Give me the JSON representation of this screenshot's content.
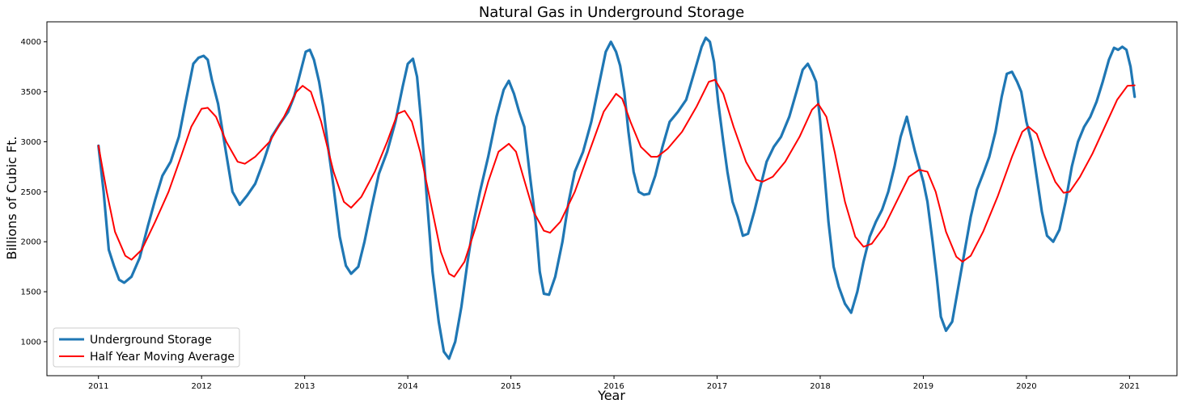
{
  "chart_data": {
    "type": "line",
    "title": "Natural Gas in Underground Storage",
    "xlabel": "Year",
    "ylabel": "Billions of Cubic Ft.",
    "xlim": [
      2010.5,
      2021.46
    ],
    "ylim": [
      660,
      4200
    ],
    "x_ticks": [
      2011,
      2012,
      2013,
      2014,
      2015,
      2016,
      2017,
      2018,
      2019,
      2020,
      2021
    ],
    "x_tick_labels": [
      "2011",
      "2012",
      "2013",
      "2014",
      "2015",
      "2016",
      "2017",
      "2018",
      "2019",
      "2020",
      "2021"
    ],
    "y_ticks": [
      1000,
      1500,
      2000,
      2500,
      3000,
      3500,
      4000
    ],
    "y_tick_labels": [
      "1000",
      "1500",
      "2000",
      "2500",
      "3000",
      "3500",
      "4000"
    ],
    "grid": false,
    "legend_position": "lower-left",
    "series": [
      {
        "name": "Underground Storage",
        "color": "#1f77b4",
        "points": [
          [
            2011.0,
            2960
          ],
          [
            2011.05,
            2500
          ],
          [
            2011.1,
            1920
          ],
          [
            2011.15,
            1760
          ],
          [
            2011.2,
            1620
          ],
          [
            2011.25,
            1590
          ],
          [
            2011.32,
            1650
          ],
          [
            2011.4,
            1840
          ],
          [
            2011.48,
            2160
          ],
          [
            2011.55,
            2420
          ],
          [
            2011.62,
            2660
          ],
          [
            2011.7,
            2800
          ],
          [
            2011.78,
            3050
          ],
          [
            2011.85,
            3420
          ],
          [
            2011.92,
            3780
          ],
          [
            2011.97,
            3840
          ],
          [
            2012.02,
            3860
          ],
          [
            2012.06,
            3820
          ],
          [
            2012.1,
            3620
          ],
          [
            2012.16,
            3380
          ],
          [
            2012.22,
            3000
          ],
          [
            2012.3,
            2500
          ],
          [
            2012.37,
            2370
          ],
          [
            2012.44,
            2460
          ],
          [
            2012.52,
            2580
          ],
          [
            2012.6,
            2800
          ],
          [
            2012.68,
            3050
          ],
          [
            2012.76,
            3180
          ],
          [
            2012.84,
            3300
          ],
          [
            2012.9,
            3460
          ],
          [
            2012.96,
            3700
          ],
          [
            2013.01,
            3900
          ],
          [
            2013.05,
            3920
          ],
          [
            2013.09,
            3820
          ],
          [
            2013.14,
            3600
          ],
          [
            2013.18,
            3350
          ],
          [
            2013.22,
            3000
          ],
          [
            2013.28,
            2550
          ],
          [
            2013.34,
            2050
          ],
          [
            2013.4,
            1760
          ],
          [
            2013.45,
            1680
          ],
          [
            2013.52,
            1750
          ],
          [
            2013.58,
            2000
          ],
          [
            2013.65,
            2350
          ],
          [
            2013.72,
            2680
          ],
          [
            2013.8,
            2900
          ],
          [
            2013.88,
            3200
          ],
          [
            2013.95,
            3550
          ],
          [
            2014.0,
            3780
          ],
          [
            2014.05,
            3830
          ],
          [
            2014.09,
            3650
          ],
          [
            2014.13,
            3200
          ],
          [
            2014.18,
            2500
          ],
          [
            2014.24,
            1700
          ],
          [
            2014.3,
            1200
          ],
          [
            2014.35,
            900
          ],
          [
            2014.4,
            830
          ],
          [
            2014.46,
            1000
          ],
          [
            2014.52,
            1350
          ],
          [
            2014.58,
            1800
          ],
          [
            2014.64,
            2200
          ],
          [
            2014.7,
            2500
          ],
          [
            2014.78,
            2850
          ],
          [
            2014.86,
            3250
          ],
          [
            2014.93,
            3520
          ],
          [
            2014.98,
            3610
          ],
          [
            2015.03,
            3480
          ],
          [
            2015.08,
            3300
          ],
          [
            2015.13,
            3150
          ],
          [
            2015.18,
            2700
          ],
          [
            2015.24,
            2200
          ],
          [
            2015.28,
            1700
          ],
          [
            2015.32,
            1480
          ],
          [
            2015.37,
            1470
          ],
          [
            2015.43,
            1650
          ],
          [
            2015.5,
            2000
          ],
          [
            2015.56,
            2400
          ],
          [
            2015.62,
            2700
          ],
          [
            2015.7,
            2900
          ],
          [
            2015.78,
            3200
          ],
          [
            2015.86,
            3600
          ],
          [
            2015.92,
            3900
          ],
          [
            2015.97,
            4000
          ],
          [
            2016.02,
            3900
          ],
          [
            2016.06,
            3760
          ],
          [
            2016.1,
            3500
          ],
          [
            2016.14,
            3100
          ],
          [
            2016.19,
            2700
          ],
          [
            2016.24,
            2500
          ],
          [
            2016.29,
            2470
          ],
          [
            2016.34,
            2480
          ],
          [
            2016.4,
            2660
          ],
          [
            2016.47,
            2950
          ],
          [
            2016.54,
            3200
          ],
          [
            2016.62,
            3300
          ],
          [
            2016.7,
            3420
          ],
          [
            2016.78,
            3700
          ],
          [
            2016.85,
            3950
          ],
          [
            2016.89,
            4040
          ],
          [
            2016.93,
            4000
          ],
          [
            2016.97,
            3800
          ],
          [
            2017.01,
            3400
          ],
          [
            2017.06,
            3000
          ],
          [
            2017.1,
            2700
          ],
          [
            2017.15,
            2400
          ],
          [
            2017.2,
            2250
          ],
          [
            2017.25,
            2060
          ],
          [
            2017.3,
            2080
          ],
          [
            2017.36,
            2300
          ],
          [
            2017.42,
            2550
          ],
          [
            2017.48,
            2800
          ],
          [
            2017.55,
            2950
          ],
          [
            2017.62,
            3050
          ],
          [
            2017.7,
            3250
          ],
          [
            2017.77,
            3500
          ],
          [
            2017.83,
            3720
          ],
          [
            2017.88,
            3780
          ],
          [
            2017.92,
            3700
          ],
          [
            2017.96,
            3600
          ],
          [
            2018.0,
            3200
          ],
          [
            2018.04,
            2700
          ],
          [
            2018.08,
            2200
          ],
          [
            2018.13,
            1750
          ],
          [
            2018.18,
            1550
          ],
          [
            2018.24,
            1380
          ],
          [
            2018.3,
            1290
          ],
          [
            2018.36,
            1500
          ],
          [
            2018.42,
            1800
          ],
          [
            2018.48,
            2050
          ],
          [
            2018.54,
            2200
          ],
          [
            2018.6,
            2320
          ],
          [
            2018.66,
            2500
          ],
          [
            2018.72,
            2750
          ],
          [
            2018.78,
            3050
          ],
          [
            2018.84,
            3250
          ],
          [
            2018.88,
            3070
          ],
          [
            2018.92,
            2900
          ],
          [
            2018.96,
            2750
          ],
          [
            2019.0,
            2600
          ],
          [
            2019.04,
            2400
          ],
          [
            2019.09,
            2000
          ],
          [
            2019.13,
            1650
          ],
          [
            2019.17,
            1250
          ],
          [
            2019.22,
            1110
          ],
          [
            2019.28,
            1200
          ],
          [
            2019.34,
            1550
          ],
          [
            2019.4,
            1900
          ],
          [
            2019.46,
            2250
          ],
          [
            2019.52,
            2520
          ],
          [
            2019.58,
            2680
          ],
          [
            2019.64,
            2850
          ],
          [
            2019.7,
            3100
          ],
          [
            2019.76,
            3450
          ],
          [
            2019.81,
            3680
          ],
          [
            2019.86,
            3700
          ],
          [
            2019.91,
            3600
          ],
          [
            2019.95,
            3500
          ],
          [
            2020.0,
            3200
          ],
          [
            2020.05,
            3000
          ],
          [
            2020.1,
            2650
          ],
          [
            2020.15,
            2300
          ],
          [
            2020.2,
            2060
          ],
          [
            2020.26,
            2000
          ],
          [
            2020.32,
            2120
          ],
          [
            2020.38,
            2400
          ],
          [
            2020.44,
            2750
          ],
          [
            2020.5,
            3000
          ],
          [
            2020.56,
            3150
          ],
          [
            2020.62,
            3250
          ],
          [
            2020.68,
            3400
          ],
          [
            2020.74,
            3600
          ],
          [
            2020.8,
            3820
          ],
          [
            2020.85,
            3940
          ],
          [
            2020.89,
            3920
          ],
          [
            2020.93,
            3950
          ],
          [
            2020.97,
            3920
          ],
          [
            2021.01,
            3750
          ],
          [
            2021.05,
            3450
          ]
        ]
      },
      {
        "name": "Half Year Moving Average",
        "color": "#ff0000",
        "points": [
          [
            2011.0,
            2960
          ],
          [
            2011.08,
            2500
          ],
          [
            2011.16,
            2100
          ],
          [
            2011.26,
            1860
          ],
          [
            2011.32,
            1820
          ],
          [
            2011.42,
            1920
          ],
          [
            2011.55,
            2200
          ],
          [
            2011.68,
            2500
          ],
          [
            2011.8,
            2850
          ],
          [
            2011.9,
            3150
          ],
          [
            2012.0,
            3330
          ],
          [
            2012.06,
            3340
          ],
          [
            2012.14,
            3250
          ],
          [
            2012.24,
            3000
          ],
          [
            2012.35,
            2800
          ],
          [
            2012.42,
            2780
          ],
          [
            2012.52,
            2850
          ],
          [
            2012.66,
            3000
          ],
          [
            2012.8,
            3250
          ],
          [
            2012.92,
            3500
          ],
          [
            2012.98,
            3560
          ],
          [
            2013.06,
            3500
          ],
          [
            2013.16,
            3200
          ],
          [
            2013.28,
            2700
          ],
          [
            2013.38,
            2400
          ],
          [
            2013.45,
            2340
          ],
          [
            2013.55,
            2450
          ],
          [
            2013.68,
            2700
          ],
          [
            2013.8,
            3000
          ],
          [
            2013.9,
            3280
          ],
          [
            2013.97,
            3310
          ],
          [
            2014.04,
            3200
          ],
          [
            2014.12,
            2900
          ],
          [
            2014.22,
            2400
          ],
          [
            2014.32,
            1900
          ],
          [
            2014.4,
            1680
          ],
          [
            2014.45,
            1650
          ],
          [
            2014.55,
            1800
          ],
          [
            2014.66,
            2150
          ],
          [
            2014.78,
            2600
          ],
          [
            2014.88,
            2900
          ],
          [
            2014.98,
            2980
          ],
          [
            2015.05,
            2900
          ],
          [
            2015.12,
            2650
          ],
          [
            2015.22,
            2300
          ],
          [
            2015.32,
            2110
          ],
          [
            2015.38,
            2090
          ],
          [
            2015.48,
            2200
          ],
          [
            2015.62,
            2500
          ],
          [
            2015.76,
            2900
          ],
          [
            2015.9,
            3300
          ],
          [
            2016.02,
            3480
          ],
          [
            2016.08,
            3430
          ],
          [
            2016.16,
            3200
          ],
          [
            2016.26,
            2950
          ],
          [
            2016.36,
            2850
          ],
          [
            2016.42,
            2850
          ],
          [
            2016.52,
            2930
          ],
          [
            2016.66,
            3100
          ],
          [
            2016.8,
            3350
          ],
          [
            2016.92,
            3600
          ],
          [
            2016.98,
            3620
          ],
          [
            2017.06,
            3480
          ],
          [
            2017.16,
            3150
          ],
          [
            2017.28,
            2800
          ],
          [
            2017.38,
            2620
          ],
          [
            2017.44,
            2600
          ],
          [
            2017.54,
            2650
          ],
          [
            2017.66,
            2800
          ],
          [
            2017.8,
            3050
          ],
          [
            2017.92,
            3320
          ],
          [
            2017.98,
            3380
          ],
          [
            2018.06,
            3250
          ],
          [
            2018.14,
            2900
          ],
          [
            2018.24,
            2400
          ],
          [
            2018.34,
            2050
          ],
          [
            2018.42,
            1950
          ],
          [
            2018.5,
            1980
          ],
          [
            2018.62,
            2150
          ],
          [
            2018.74,
            2400
          ],
          [
            2018.86,
            2650
          ],
          [
            2018.96,
            2720
          ],
          [
            2019.04,
            2700
          ],
          [
            2019.12,
            2500
          ],
          [
            2019.22,
            2100
          ],
          [
            2019.32,
            1850
          ],
          [
            2019.38,
            1800
          ],
          [
            2019.46,
            1860
          ],
          [
            2019.58,
            2100
          ],
          [
            2019.72,
            2450
          ],
          [
            2019.86,
            2850
          ],
          [
            2019.96,
            3100
          ],
          [
            2020.02,
            3150
          ],
          [
            2020.1,
            3080
          ],
          [
            2020.18,
            2850
          ],
          [
            2020.28,
            2600
          ],
          [
            2020.36,
            2490
          ],
          [
            2020.42,
            2500
          ],
          [
            2020.52,
            2650
          ],
          [
            2020.64,
            2880
          ],
          [
            2020.76,
            3150
          ],
          [
            2020.88,
            3420
          ],
          [
            2020.98,
            3560
          ],
          [
            2021.05,
            3565
          ]
        ]
      }
    ]
  }
}
